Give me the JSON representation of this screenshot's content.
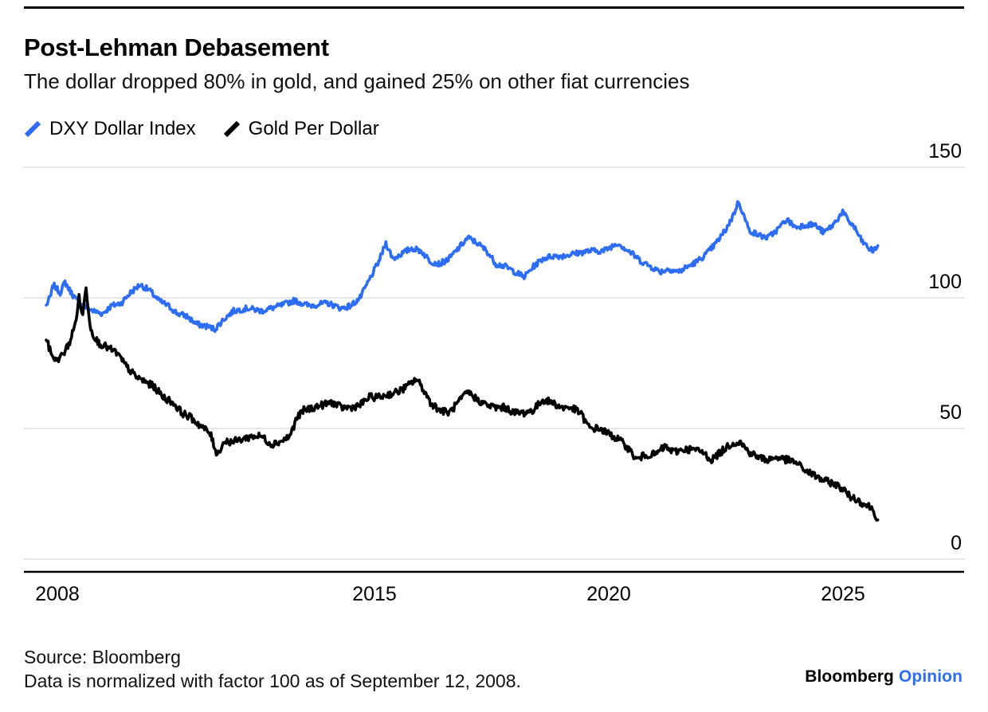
{
  "header": {
    "title": "Post-Lehman Debasement",
    "subtitle": "The dollar dropped 80% in gold, and gained 25% on other fiat currencies"
  },
  "legend": [
    {
      "label": "DXY Dollar Index",
      "color": "#2d6df5"
    },
    {
      "label": "Gold Per Dollar",
      "color": "#000000"
    }
  ],
  "footer": {
    "source": "Source: Bloomberg",
    "note": "Data is normalized with factor 100 as of September 12, 2008.",
    "brand": "Bloomberg",
    "brand_suffix": "Opinion"
  },
  "chart_data": {
    "type": "line",
    "title": "Post-Lehman Debasement",
    "subtitle": "The dollar dropped 80% in gold, and gained 25% on other fiat currencies",
    "normalization": "Data normalized with factor 100 as of September 12, 2008",
    "grid": "horizontal",
    "legend_position": "top-left",
    "xlim": [
      2008,
      2027.6
    ],
    "ylim": [
      0,
      150
    ],
    "x_ticks": [
      "2008",
      "2015",
      "2020",
      "2025"
    ],
    "y_ticks": [
      "0",
      "50",
      "100",
      "150"
    ],
    "series": [
      {
        "name": "DXY Dollar Index",
        "color": "#2d6df5",
        "x": [
          2008.0,
          2008.1,
          2008.15,
          2008.3,
          2008.4,
          2008.5,
          2008.65,
          2008.8,
          2009.0,
          2009.2,
          2009.4,
          2009.6,
          2009.8,
          2010.0,
          2010.2,
          2010.4,
          2010.6,
          2010.8,
          2011.0,
          2011.2,
          2011.45,
          2011.6,
          2011.8,
          2012.0,
          2012.3,
          2012.6,
          2013.0,
          2013.3,
          2013.6,
          2014.0,
          2014.3,
          2014.5,
          2014.7,
          2014.9,
          2015.1,
          2015.25,
          2015.4,
          2015.6,
          2015.8,
          2016.0,
          2016.2,
          2016.4,
          2016.6,
          2016.8,
          2017.0,
          2017.2,
          2017.4,
          2017.6,
          2017.8,
          2018.0,
          2018.2,
          2018.4,
          2018.6,
          2018.8,
          2019.0,
          2019.3,
          2019.6,
          2019.9,
          2020.2,
          2020.35,
          2020.5,
          2020.7,
          2020.9,
          2021.1,
          2021.3,
          2021.5,
          2021.7,
          2021.9,
          2022.1,
          2022.3,
          2022.5,
          2022.65,
          2022.78,
          2022.9,
          2023.0,
          2023.2,
          2023.4,
          2023.6,
          2023.8,
          2024.0,
          2024.2,
          2024.4,
          2024.6,
          2024.8,
          2025.0,
          2025.1,
          2025.25,
          2025.4,
          2025.55,
          2025.65,
          2025.75
        ],
        "values": [
          97,
          101,
          105,
          102,
          106,
          103,
          99,
          97,
          95,
          94,
          97,
          98,
          102,
          105,
          103,
          99,
          97,
          94,
          93,
          90,
          89,
          88,
          92,
          95,
          96,
          95,
          97,
          99,
          97,
          98,
          96,
          97,
          100,
          107,
          114,
          121,
          115,
          117,
          119,
          118,
          114,
          113,
          115,
          119,
          123,
          121,
          118,
          113,
          112,
          110,
          108,
          112,
          115,
          116,
          116,
          117,
          118,
          118,
          121,
          119,
          117,
          114,
          112,
          110,
          111,
          110,
          112,
          114,
          117,
          121,
          126,
          131,
          137,
          131,
          126,
          124,
          123,
          126,
          130,
          127,
          128,
          128,
          125,
          128,
          133,
          130,
          127,
          122,
          119,
          118,
          120
        ]
      },
      {
        "name": "Gold Per Dollar",
        "color": "#000000",
        "x": [
          2008.0,
          2008.1,
          2008.2,
          2008.35,
          2008.5,
          2008.62,
          2008.7,
          2008.78,
          2008.85,
          2008.95,
          2009.1,
          2009.3,
          2009.5,
          2009.7,
          2009.9,
          2010.1,
          2010.3,
          2010.5,
          2010.7,
          2010.9,
          2011.1,
          2011.3,
          2011.5,
          2011.65,
          2011.8,
          2012.0,
          2012.2,
          2012.4,
          2012.6,
          2012.8,
          2013.0,
          2013.2,
          2013.35,
          2013.5,
          2013.7,
          2013.9,
          2014.1,
          2014.3,
          2014.5,
          2014.7,
          2014.9,
          2015.1,
          2015.3,
          2015.5,
          2015.7,
          2015.9,
          2016.05,
          2016.2,
          2016.4,
          2016.6,
          2016.8,
          2017.0,
          2017.2,
          2017.4,
          2017.6,
          2017.8,
          2018.0,
          2018.2,
          2018.4,
          2018.6,
          2018.8,
          2019.0,
          2019.2,
          2019.4,
          2019.6,
          2019.8,
          2020.0,
          2020.2,
          2020.4,
          2020.6,
          2020.8,
          2021.0,
          2021.2,
          2021.4,
          2021.6,
          2021.8,
          2022.0,
          2022.2,
          2022.4,
          2022.6,
          2022.8,
          2023.0,
          2023.2,
          2023.4,
          2023.6,
          2023.8,
          2024.0,
          2024.2,
          2024.4,
          2024.6,
          2024.8,
          2025.0,
          2025.15,
          2025.3,
          2025.45,
          2025.6,
          2025.7,
          2025.75
        ],
        "values": [
          84,
          79,
          76,
          78,
          83,
          90,
          100,
          93,
          104,
          88,
          83,
          81,
          79,
          74,
          70,
          68,
          66,
          62,
          60,
          56,
          54,
          51,
          48,
          40,
          45,
          45,
          46,
          47,
          47,
          44,
          45,
          47,
          54,
          57,
          58,
          59,
          60,
          58,
          58,
          59,
          62,
          62,
          63,
          64,
          66,
          69,
          65,
          60,
          57,
          56,
          60,
          64,
          61,
          59,
          58,
          58,
          56,
          56,
          57,
          61,
          60,
          58,
          58,
          56,
          50,
          50,
          48,
          46,
          43,
          38,
          40,
          40,
          43,
          41,
          42,
          42,
          41,
          38,
          41,
          44,
          45,
          41,
          39,
          38,
          39,
          38,
          37,
          34,
          32,
          30,
          29,
          27,
          24,
          23,
          21,
          20,
          17,
          15
        ]
      }
    ]
  }
}
